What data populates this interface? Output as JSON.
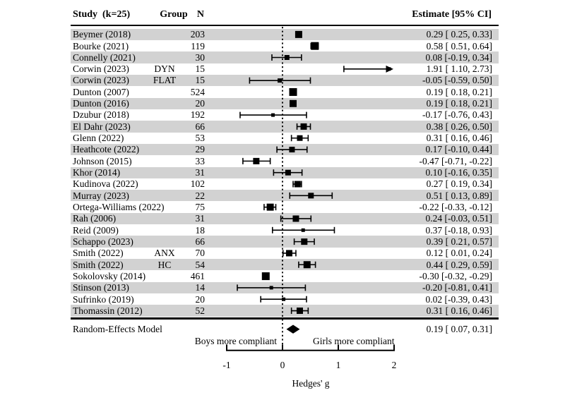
{
  "title_row": {
    "study": "Study  (k=25)",
    "group": "Group",
    "n": "N",
    "estimate": "Estimate [95% CI]"
  },
  "chart_data": {
    "type": "forest",
    "title": "",
    "xlabel": "Hedges' g",
    "x_ticks": [
      "-1",
      "0",
      "1",
      "2"
    ],
    "x_tick_values": [
      -1,
      0,
      1,
      2
    ],
    "axis_range": [
      -1,
      2
    ],
    "reference_line": 0,
    "direction_labels": {
      "left": "Boys more compliant",
      "right": "Girls more compliant"
    },
    "colors": {
      "band": "#d2d2d2",
      "ink": "#000000",
      "background": "#ffffff"
    },
    "studies": [
      {
        "study": "Beymer (2018)",
        "group": "",
        "n": "203",
        "g": 0.29,
        "lo": 0.25,
        "hi": 0.33,
        "ci_text": "0.29 [ 0.25, 0.33]",
        "size": 10,
        "arrow": false
      },
      {
        "study": "Bourke (2021)",
        "group": "",
        "n": "119",
        "g": 0.58,
        "lo": 0.51,
        "hi": 0.64,
        "ci_text": "0.58 [ 0.51, 0.64]",
        "size": 11,
        "arrow": false
      },
      {
        "study": "Connelly (2021)",
        "group": "",
        "n": "30",
        "g": 0.08,
        "lo": -0.19,
        "hi": 0.34,
        "ci_text": "0.08 [-0.19, 0.34]",
        "size": 7,
        "arrow": false
      },
      {
        "study": "Corwin (2023)",
        "group": "DYN",
        "n": "15",
        "g": 1.91,
        "lo": 1.1,
        "hi": 2.73,
        "ci_text": "1.91 [ 1.10, 2.73]",
        "size": 5,
        "arrow": true
      },
      {
        "study": "Corwin (2023)",
        "group": "FLAT",
        "n": "15",
        "g": -0.05,
        "lo": -0.59,
        "hi": 0.5,
        "ci_text": "-0.05 [-0.59, 0.50]",
        "size": 6,
        "arrow": false
      },
      {
        "study": "Dunton (2007)",
        "group": "",
        "n": "524",
        "g": 0.19,
        "lo": 0.18,
        "hi": 0.21,
        "ci_text": "0.19 [ 0.18, 0.21]",
        "size": 11,
        "arrow": false
      },
      {
        "study": "Dunton (2016)",
        "group": "",
        "n": "20",
        "g": 0.19,
        "lo": 0.18,
        "hi": 0.21,
        "ci_text": "0.19 [ 0.18, 0.21]",
        "size": 10,
        "arrow": false
      },
      {
        "study": "Dzubur (2018)",
        "group": "",
        "n": "192",
        "g": -0.17,
        "lo": -0.76,
        "hi": 0.43,
        "ci_text": "-0.17 [-0.76, 0.43]",
        "size": 5,
        "arrow": false
      },
      {
        "study": "El Dahr (2023)",
        "group": "",
        "n": "66",
        "g": 0.38,
        "lo": 0.26,
        "hi": 0.5,
        "ci_text": "0.38 [ 0.26, 0.50]",
        "size": 9,
        "arrow": false
      },
      {
        "study": "Glenn (2022)",
        "group": "",
        "n": "53",
        "g": 0.31,
        "lo": 0.16,
        "hi": 0.46,
        "ci_text": "0.31 [ 0.16, 0.46]",
        "size": 8,
        "arrow": false
      },
      {
        "study": "Heathcote (2022)",
        "group": "",
        "n": "29",
        "g": 0.17,
        "lo": -0.1,
        "hi": 0.44,
        "ci_text": "0.17 [-0.10, 0.44]",
        "size": 8,
        "arrow": false
      },
      {
        "study": "Johnson (2015)",
        "group": "",
        "n": "33",
        "g": -0.47,
        "lo": -0.71,
        "hi": -0.22,
        "ci_text": "-0.47 [-0.71, -0.22]",
        "size": 9,
        "arrow": false
      },
      {
        "study": "Khor (2014)",
        "group": "",
        "n": "31",
        "g": 0.1,
        "lo": -0.16,
        "hi": 0.35,
        "ci_text": "0.10 [-0.16, 0.35]",
        "size": 8,
        "arrow": false
      },
      {
        "study": "Kudinova (2022)",
        "group": "",
        "n": "102",
        "g": 0.27,
        "lo": 0.19,
        "hi": 0.34,
        "ci_text": "0.27 [ 0.19, 0.34]",
        "size": 9,
        "arrow": false
      },
      {
        "study": "Murray (2023)",
        "group": "",
        "n": "22",
        "g": 0.51,
        "lo": 0.13,
        "hi": 0.89,
        "ci_text": "0.51 [ 0.13, 0.89]",
        "size": 8,
        "arrow": false
      },
      {
        "study": "Ortega-Williams (2022)",
        "group": "",
        "n": "75",
        "g": -0.22,
        "lo": -0.33,
        "hi": -0.12,
        "ci_text": "-0.22 [-0.33, -0.12]",
        "size": 10,
        "arrow": false
      },
      {
        "study": "Rah (2006)",
        "group": "",
        "n": "31",
        "g": 0.24,
        "lo": -0.03,
        "hi": 0.51,
        "ci_text": "0.24 [-0.03, 0.51]",
        "size": 9,
        "arrow": false
      },
      {
        "study": "Reid (2009)",
        "group": "",
        "n": "18",
        "g": 0.37,
        "lo": -0.18,
        "hi": 0.93,
        "ci_text": "0.37 [-0.18, 0.93]",
        "size": 5,
        "arrow": false
      },
      {
        "study": "Schappo (2023)",
        "group": "",
        "n": "66",
        "g": 0.39,
        "lo": 0.21,
        "hi": 0.57,
        "ci_text": "0.39 [ 0.21, 0.57]",
        "size": 9,
        "arrow": false
      },
      {
        "study": "Smith (2022)",
        "group": "ANX",
        "n": "70",
        "g": 0.12,
        "lo": 0.01,
        "hi": 0.24,
        "ci_text": "0.12 [ 0.01, 0.24]",
        "size": 9,
        "arrow": false
      },
      {
        "study": "Smith (2022)",
        "group": "HC",
        "n": "54",
        "g": 0.44,
        "lo": 0.29,
        "hi": 0.59,
        "ci_text": "0.44 [ 0.29, 0.59]",
        "size": 10,
        "arrow": false
      },
      {
        "study": "Sokolovsky (2014)",
        "group": "",
        "n": "461",
        "g": -0.3,
        "lo": -0.32,
        "hi": -0.29,
        "ci_text": "-0.30 [-0.32, -0.29]",
        "size": 11,
        "arrow": false
      },
      {
        "study": "Stinson (2013)",
        "group": "",
        "n": "14",
        "g": -0.2,
        "lo": -0.81,
        "hi": 0.41,
        "ci_text": "-0.20 [-0.81, 0.41]",
        "size": 5,
        "arrow": false
      },
      {
        "study": "Sufrinko (2019)",
        "group": "",
        "n": "20",
        "g": 0.02,
        "lo": -0.39,
        "hi": 0.43,
        "ci_text": "0.02 [-0.39, 0.43]",
        "size": 5,
        "arrow": false
      },
      {
        "study": "Thomassin (2012)",
        "group": "",
        "n": "52",
        "g": 0.31,
        "lo": 0.16,
        "hi": 0.46,
        "ci_text": "0.31 [ 0.16, 0.46]",
        "size": 9,
        "arrow": false
      }
    ],
    "summary": {
      "label": "Random-Effects Model",
      "estimate": 0.19,
      "ci_low": 0.07,
      "ci_high": 0.31,
      "ci_text": "0.19 [ 0.07, 0.31]"
    }
  }
}
